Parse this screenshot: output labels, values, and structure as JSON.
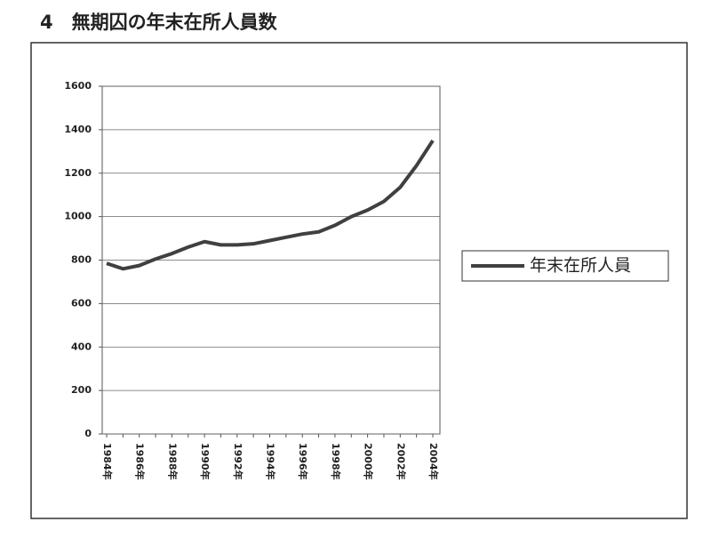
{
  "chart_data": {
    "type": "line",
    "title": "4　無期囚の年末在所人員数",
    "categories": [
      "1984年",
      null,
      "1986年",
      null,
      "1988年",
      null,
      "1990年",
      null,
      "1992年",
      null,
      "1994年",
      null,
      "1996年",
      null,
      "1998年",
      null,
      "2000年",
      null,
      "2002年",
      null,
      "2004年"
    ],
    "series": [
      {
        "name": "年末在所人員",
        "color": "#404040",
        "values": [
          785,
          760,
          775,
          805,
          830,
          860,
          885,
          870,
          870,
          875,
          890,
          905,
          920,
          930,
          960,
          1000,
          1030,
          1070,
          1135,
          1235,
          1350
        ]
      }
    ],
    "ylim": [
      0,
      1600
    ],
    "yticks": [
      0,
      200,
      400,
      600,
      800,
      1000,
      1200,
      1400,
      1600
    ],
    "grid": true,
    "legend": "right"
  }
}
